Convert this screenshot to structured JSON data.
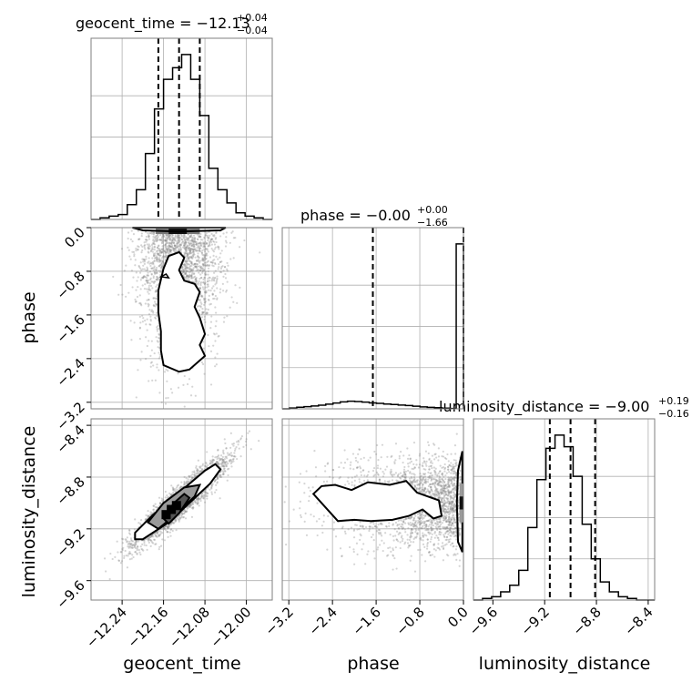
{
  "chart_data": {
    "type": "corner",
    "parameters": [
      {
        "name": "geocent_time",
        "axis_label": "geocent_time",
        "title": {
          "main": "geocent_time = −12.13",
          "sup": "+0.04",
          "sub": "−0.04"
        },
        "range": [
          -12.3,
          -11.95
        ],
        "ticks": [
          -12.24,
          -12.16,
          -12.08,
          -12.0
        ],
        "tick_labels": [
          "−12.24",
          "−12.16",
          "−12.08",
          "−12.00"
        ],
        "quantiles": [
          -12.17,
          -12.13,
          -12.09
        ],
        "hist": [
          0.0,
          0.01,
          0.02,
          0.03,
          0.09,
          0.18,
          0.4,
          0.67,
          0.85,
          0.92,
          1.0,
          0.85,
          0.63,
          0.31,
          0.18,
          0.1,
          0.04,
          0.02,
          0.01,
          0.0
        ]
      },
      {
        "name": "phase",
        "axis_label": "phase",
        "title": {
          "main": "phase = −0.00",
          "sup": "+0.00",
          "sub": "−1.66"
        },
        "range": [
          -3.32,
          0.0
        ],
        "ticks": [
          -3.2,
          -2.4,
          -1.6,
          -0.8,
          0.0
        ],
        "tick_labels": [
          "−3.2",
          "−2.4",
          "−1.6",
          "−0.8",
          "0.0"
        ],
        "quantiles": [
          -1.66,
          0.0,
          0.0
        ],
        "hist": [
          0.0,
          0.005,
          0.01,
          0.013,
          0.017,
          0.022,
          0.028,
          0.035,
          0.042,
          0.046,
          0.044,
          0.041,
          0.036,
          0.033,
          0.029,
          0.026,
          0.023,
          0.02,
          0.016,
          0.012,
          0.009,
          0.007,
          0.004,
          0.002,
          1.0
        ]
      },
      {
        "name": "luminosity_distance",
        "axis_label": "luminosity_distance",
        "title": {
          "main": "luminosity_distance = −9.00",
          "sup": "+0.19",
          "sub": "−0.16"
        },
        "range": [
          -9.75,
          -8.35
        ],
        "ticks": [
          -9.6,
          -9.2,
          -8.8,
          -8.4
        ],
        "tick_labels": [
          "−9.6",
          "−9.2",
          "−8.8",
          "−8.4"
        ],
        "quantiles": [
          -9.16,
          -9.0,
          -8.81
        ],
        "hist": [
          0.0,
          0.01,
          0.02,
          0.05,
          0.09,
          0.18,
          0.44,
          0.73,
          0.92,
          1.0,
          0.93,
          0.75,
          0.46,
          0.25,
          0.11,
          0.05,
          0.02,
          0.01,
          0.0,
          0.0
        ]
      }
    ],
    "phase_y_ticks": [
      -3.2,
      -2.4,
      -1.6,
      -0.8,
      0.0
    ],
    "phase_y_tick_labels": [
      "−3.2",
      "−2.4",
      "−1.6",
      "−0.8",
      "0.0"
    ],
    "ld_y_ticks": [
      -9.6,
      -9.2,
      -8.8,
      -8.4
    ],
    "ld_y_tick_labels": [
      "−9.6",
      "−9.2",
      "−8.8",
      "−8.4"
    ],
    "grid": true,
    "colors": {
      "hist": "#000000",
      "quantile": "#000000",
      "scatter": "#888888",
      "grid": "#b0b0b0",
      "frame": "#7f7f7f"
    }
  }
}
